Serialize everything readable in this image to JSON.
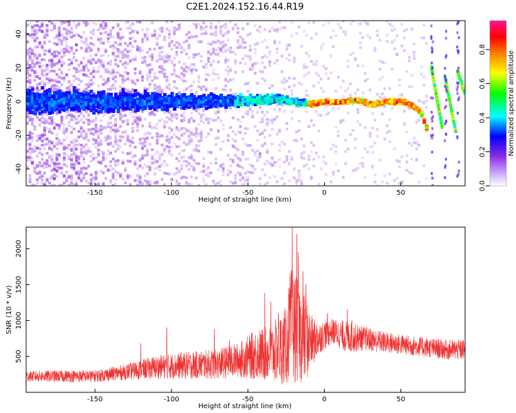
{
  "figure": {
    "title": "C2E1.2024.152.16.44.R19"
  },
  "chart_data": [
    {
      "type": "heatmap",
      "xlabel": "Height of straight line (km)",
      "ylabel": "Frequency (Hz)",
      "xlim": [
        -195,
        92
      ],
      "ylim": [
        -50,
        48
      ],
      "x_ticks": [
        -150,
        -100,
        -50,
        0,
        50
      ],
      "y_ticks": [
        -40,
        -20,
        0,
        20,
        40
      ],
      "grid": false,
      "colorbar": {
        "label": "Normalized spectral amplitude",
        "range": [
          0,
          0.97
        ],
        "ticks": [
          0.0,
          0.2,
          0.4,
          0.6,
          0.8
        ],
        "colormap": [
          "#ffffff",
          "#8a2be2",
          "#0000ff",
          "#00ffff",
          "#00ff00",
          "#ffff00",
          "#ff7f00",
          "#ff0000",
          "#ff1493"
        ]
      },
      "ridge": [
        {
          "x": -195,
          "y": 0
        },
        {
          "x": -150,
          "y": 0
        },
        {
          "x": -100,
          "y": 0
        },
        {
          "x": -50,
          "y": 0.5
        },
        {
          "x": -30,
          "y": 1.5
        },
        {
          "x": -20,
          "y": 0
        },
        {
          "x": -10,
          "y": -1.5
        },
        {
          "x": 0,
          "y": 0
        },
        {
          "x": 10,
          "y": -0.5
        },
        {
          "x": 20,
          "y": 1
        },
        {
          "x": 30,
          "y": -2
        },
        {
          "x": 40,
          "y": 0
        },
        {
          "x": 50,
          "y": 0
        },
        {
          "x": 56,
          "y": -2
        },
        {
          "x": 62,
          "y": -6
        },
        {
          "x": 66,
          "y": -16
        }
      ],
      "branches": [
        {
          "x": [
            70,
            77
          ],
          "y": [
            20,
            -15
          ]
        },
        {
          "x": [
            79,
            86
          ],
          "y": [
            14,
            -18
          ]
        },
        {
          "x": [
            87,
            92
          ],
          "y": [
            18,
            5
          ]
        }
      ]
    },
    {
      "type": "line",
      "xlabel": "Height of straight line (km)",
      "ylabel": "SNR (10 * v/v)",
      "xlim": [
        -195,
        92
      ],
      "ylim": [
        0,
        2300
      ],
      "x_ticks": [
        -150,
        -100,
        -50,
        0,
        50
      ],
      "y_ticks": [
        500,
        1000,
        1500,
        2000
      ],
      "grid": false,
      "series": [
        {
          "color": "#ee3333",
          "envelope": [
            {
              "x": -195,
              "base": 200,
              "spread": 150
            },
            {
              "x": -170,
              "base": 200,
              "spread": 170
            },
            {
              "x": -150,
              "base": 200,
              "spread": 170
            },
            {
              "x": -130,
              "base": 250,
              "spread": 220
            },
            {
              "x": -110,
              "base": 300,
              "spread": 330
            },
            {
              "x": -90,
              "base": 320,
              "spread": 380
            },
            {
              "x": -70,
              "base": 330,
              "spread": 420
            },
            {
              "x": -55,
              "base": 380,
              "spread": 500
            },
            {
              "x": -45,
              "base": 420,
              "spread": 700
            },
            {
              "x": -35,
              "base": 420,
              "spread": 800
            },
            {
              "x": -25,
              "base": 480,
              "spread": 1100
            },
            {
              "x": -22,
              "base": 700,
              "spread": 1600
            },
            {
              "x": -18,
              "base": 650,
              "spread": 1500
            },
            {
              "x": -12,
              "base": 550,
              "spread": 1200
            },
            {
              "x": -8,
              "base": 600,
              "spread": 700
            },
            {
              "x": -3,
              "base": 700,
              "spread": 450
            },
            {
              "x": 5,
              "base": 800,
              "spread": 350
            },
            {
              "x": 15,
              "base": 700,
              "spread": 450
            },
            {
              "x": 25,
              "base": 700,
              "spread": 350
            },
            {
              "x": 40,
              "base": 650,
              "spread": 300
            },
            {
              "x": 60,
              "base": 600,
              "spread": 280
            },
            {
              "x": 80,
              "base": 550,
              "spread": 280
            },
            {
              "x": 92,
              "base": 550,
              "spread": 300
            }
          ],
          "peaks": [
            {
              "x": -39,
              "y": 1380
            },
            {
              "x": -35,
              "y": 1260
            },
            {
              "x": -30,
              "y": 1100
            },
            {
              "x": -21,
              "y": 2300
            },
            {
              "x": -18,
              "y": 2200
            },
            {
              "x": -17,
              "y": 1950
            },
            {
              "x": -14,
              "y": 1680
            },
            {
              "x": -12,
              "y": 1500
            },
            {
              "x": 2,
              "y": 1100
            },
            {
              "x": 15,
              "y": 1150
            },
            {
              "x": 18,
              "y": 1000
            },
            {
              "x": -103,
              "y": 900
            },
            {
              "x": -72,
              "y": 880
            },
            {
              "x": -62,
              "y": 720
            },
            {
              "x": -120,
              "y": 680
            }
          ]
        }
      ]
    }
  ]
}
